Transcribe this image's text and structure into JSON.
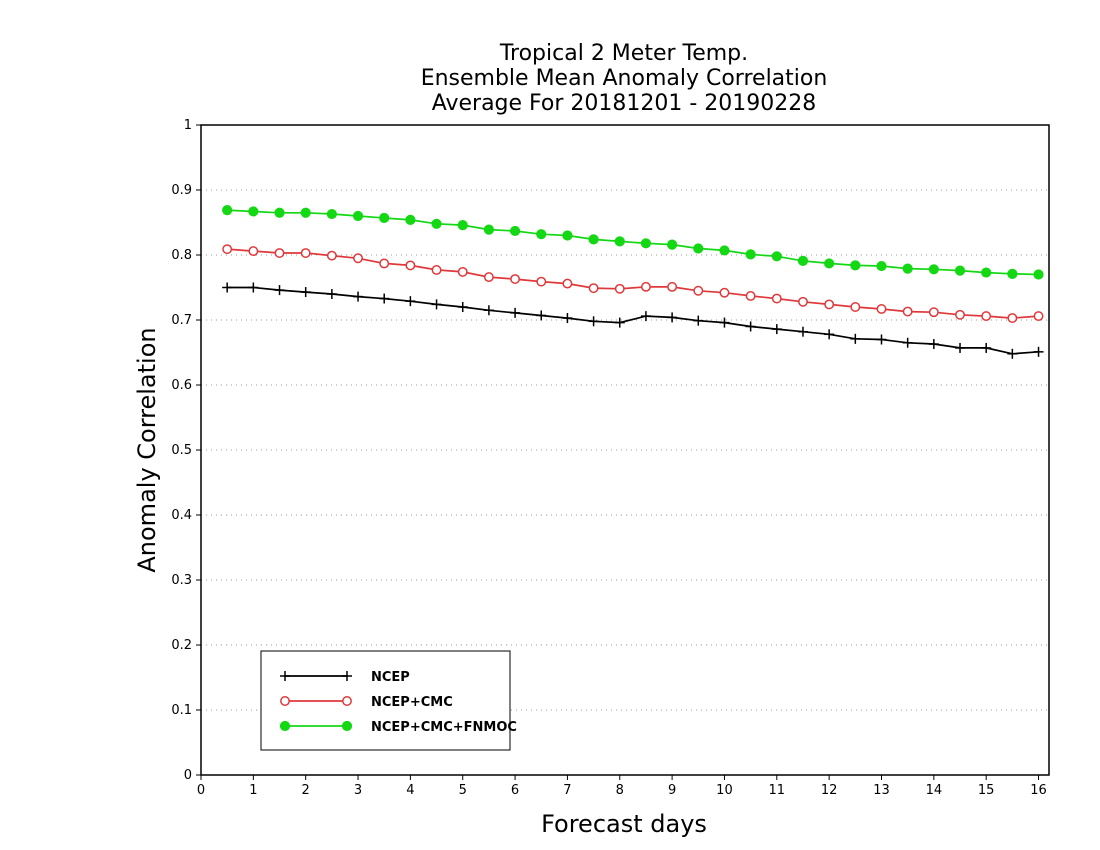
{
  "chart_data": {
    "type": "line",
    "title_lines": [
      "Tropical 2 Meter Temp.",
      "Ensemble Mean Anomaly Correlation",
      "Average For 20181201 - 20190228"
    ],
    "xlabel": "Forecast days",
    "ylabel": "Anomaly Correlation",
    "xlim": [
      0,
      16.2
    ],
    "ylim": [
      0,
      1
    ],
    "x_ticks": [
      0,
      1,
      2,
      3,
      4,
      5,
      6,
      7,
      8,
      9,
      10,
      11,
      12,
      13,
      14,
      15,
      16
    ],
    "y_ticks": [
      0,
      0.1,
      0.2,
      0.3,
      0.4,
      0.5,
      0.6,
      0.7,
      0.8,
      0.9,
      1
    ],
    "y_tick_labels": [
      "0",
      "0.1",
      "0.2",
      "0.3",
      "0.4",
      "0.5",
      "0.6",
      "0.7",
      "0.8",
      "0.9",
      "1"
    ],
    "grid": "horizontal dotted",
    "legend_position": "bottom-left",
    "x": [
      0.5,
      1.0,
      1.5,
      2.0,
      2.5,
      3.0,
      3.5,
      4.0,
      4.5,
      5.0,
      5.5,
      6.0,
      6.5,
      7.0,
      7.5,
      8.0,
      8.5,
      9.0,
      9.5,
      10.0,
      10.5,
      11.0,
      11.5,
      12.0,
      12.5,
      13.0,
      13.5,
      14.0,
      14.5,
      15.0,
      15.5,
      16.0
    ],
    "series": [
      {
        "name": "NCEP",
        "color": "#000000",
        "marker": "plus",
        "values": [
          0.75,
          0.75,
          0.746,
          0.743,
          0.74,
          0.736,
          0.733,
          0.729,
          0.724,
          0.72,
          0.715,
          0.711,
          0.707,
          0.703,
          0.698,
          0.696,
          0.706,
          0.704,
          0.699,
          0.696,
          0.69,
          0.686,
          0.682,
          0.678,
          0.671,
          0.67,
          0.665,
          0.663,
          0.657,
          0.657,
          0.648,
          0.651
        ]
      },
      {
        "name": "NCEP+CMC",
        "color": "#e0383a",
        "marker": "open-circle",
        "values": [
          0.809,
          0.806,
          0.803,
          0.803,
          0.799,
          0.795,
          0.787,
          0.784,
          0.777,
          0.774,
          0.766,
          0.763,
          0.759,
          0.756,
          0.749,
          0.748,
          0.751,
          0.751,
          0.745,
          0.742,
          0.737,
          0.733,
          0.728,
          0.724,
          0.72,
          0.717,
          0.713,
          0.712,
          0.708,
          0.706,
          0.703,
          0.706
        ]
      },
      {
        "name": "NCEP+CMC+FNMOC",
        "color": "#13d813",
        "marker": "filled-circle",
        "values": [
          0.869,
          0.867,
          0.865,
          0.865,
          0.863,
          0.86,
          0.857,
          0.854,
          0.848,
          0.846,
          0.839,
          0.837,
          0.832,
          0.83,
          0.824,
          0.821,
          0.818,
          0.816,
          0.81,
          0.807,
          0.801,
          0.798,
          0.791,
          0.787,
          0.784,
          0.783,
          0.779,
          0.778,
          0.776,
          0.773,
          0.771,
          0.77
        ]
      }
    ]
  }
}
